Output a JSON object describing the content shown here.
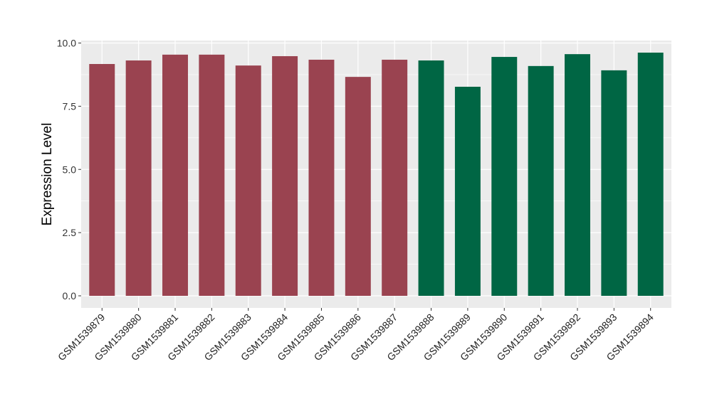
{
  "chart_data": {
    "type": "bar",
    "title": "",
    "xlabel": "",
    "ylabel": "Expression Level",
    "ylim": [
      0,
      10
    ],
    "yticks": [
      "0.0",
      "2.5",
      "5.0",
      "7.5",
      "10.0"
    ],
    "grid": true,
    "legend": "none",
    "categories": [
      "GSM1539879",
      "GSM1539880",
      "GSM1539881",
      "GSM1539882",
      "GSM1539883",
      "GSM1539884",
      "GSM1539885",
      "GSM1539886",
      "GSM1539887",
      "GSM1539888",
      "GSM1539889",
      "GSM1539890",
      "GSM1539891",
      "GSM1539892",
      "GSM1539893",
      "GSM1539894"
    ],
    "values": [
      9.17,
      9.31,
      9.54,
      9.54,
      9.11,
      9.48,
      9.34,
      8.66,
      9.34,
      9.31,
      8.27,
      9.45,
      9.09,
      9.56,
      8.92,
      9.62
    ],
    "groups": [
      0,
      0,
      0,
      0,
      0,
      0,
      0,
      0,
      0,
      1,
      1,
      1,
      1,
      1,
      1,
      1
    ],
    "group_colors": [
      "#9a4350",
      "#006644"
    ],
    "panel_color": "#ebebeb"
  }
}
